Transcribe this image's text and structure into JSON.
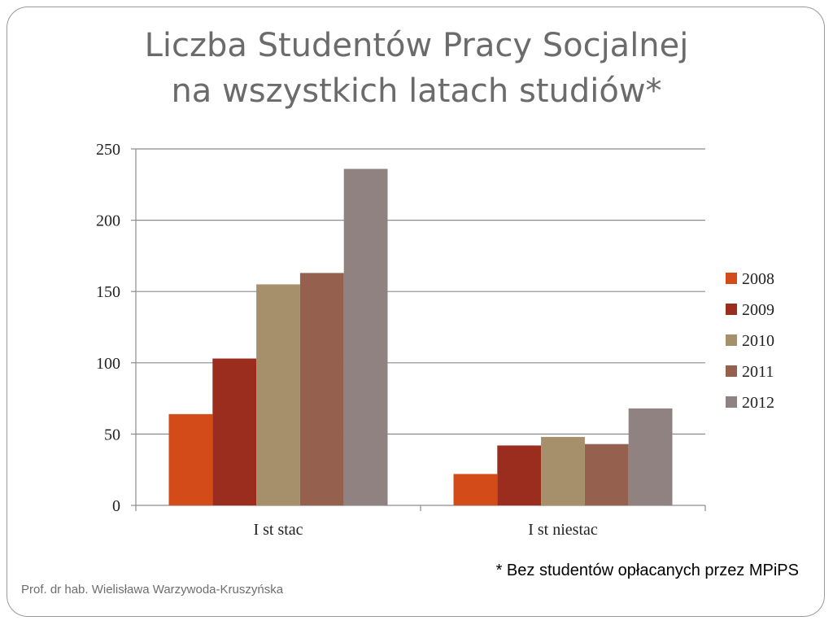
{
  "slide": {
    "title_line1": "Liczba Studentów Pracy Socjalnej",
    "title_line2": "na wszystkich latach studiów*",
    "footnote": "* Bez studentów opłacanych przez MPiPS",
    "author": "Prof. dr hab. Wielisława Warzywoda-Kruszyńska"
  },
  "chart_data": {
    "type": "bar",
    "categories": [
      "I st stac",
      "I st niestac"
    ],
    "series": [
      {
        "name": "2008",
        "values": [
          64,
          22
        ],
        "color": "#d24b19"
      },
      {
        "name": "2009",
        "values": [
          103,
          42
        ],
        "color": "#9a2d1e"
      },
      {
        "name": "2010",
        "values": [
          155,
          48
        ],
        "color": "#a68f6b"
      },
      {
        "name": "2011",
        "values": [
          163,
          43
        ],
        "color": "#96604f"
      },
      {
        "name": "2012",
        "values": [
          236,
          68
        ],
        "color": "#8f8280"
      }
    ],
    "yticks": [
      0,
      50,
      100,
      150,
      200,
      250
    ],
    "ylim": [
      0,
      250
    ],
    "grid": true,
    "legend": "right"
  }
}
